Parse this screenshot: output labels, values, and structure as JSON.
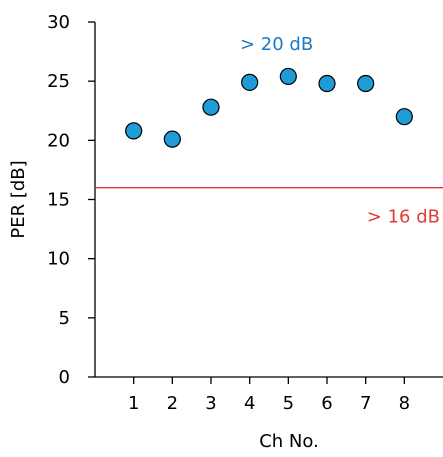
{
  "chart_data": {
    "type": "scatter",
    "xlabel": "Ch No.",
    "ylabel": "PER [dB]",
    "xlim": [
      0,
      9
    ],
    "ylim": [
      0,
      30
    ],
    "x_ticks": [
      1,
      2,
      3,
      4,
      5,
      6,
      7,
      8
    ],
    "y_ticks": [
      0,
      5,
      10,
      15,
      20,
      25,
      30
    ],
    "grid": false,
    "series": [
      {
        "x": [
          1,
          2,
          3,
          4,
          5,
          6,
          7,
          8
        ],
        "y": [
          20.8,
          20.1,
          22.8,
          24.9,
          25.4,
          24.8,
          24.8,
          22.0
        ],
        "color": "#1f9bd7"
      }
    ],
    "reference_line": {
      "y": 16,
      "color": "#e03a3a"
    },
    "annotations": [
      {
        "text": "> 20 dB",
        "color": "#1f78c0"
      },
      {
        "text": "> 16 dB",
        "color": "#e03a3a"
      }
    ]
  }
}
